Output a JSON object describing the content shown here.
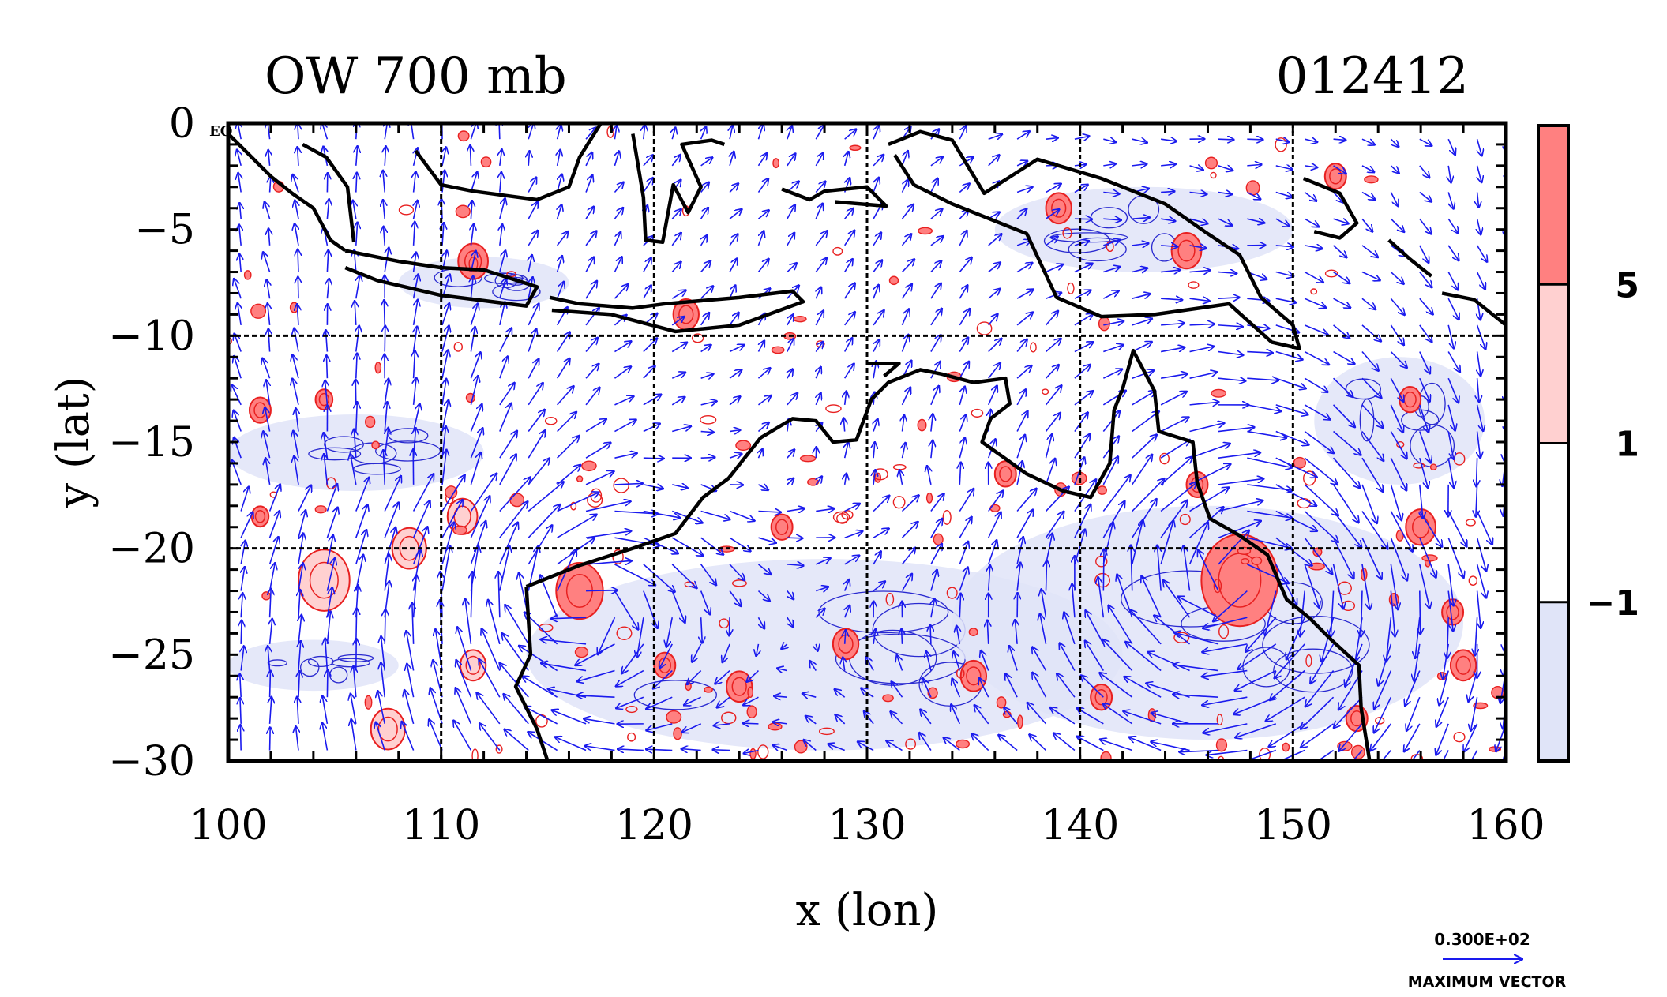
{
  "chart_data": {
    "type": "heatmap",
    "title_left": "OW 700 mb",
    "title_right": "012412",
    "xlabel": "x (lon)",
    "ylabel": "y (lat)",
    "xlim": [
      100,
      160
    ],
    "ylim": [
      -30,
      0
    ],
    "x_ticks": [
      100,
      110,
      120,
      130,
      140,
      150,
      160
    ],
    "y_ticks": [
      0,
      -5,
      -10,
      -15,
      -20,
      -25,
      -30
    ],
    "x_tick_labels": [
      "100",
      "110",
      "120",
      "130",
      "140",
      "150",
      "160"
    ],
    "y_tick_labels": [
      "0",
      "−5",
      "−10",
      "−15",
      "−20",
      "−25",
      "−30"
    ],
    "equator_label": "EQ",
    "grid_lon": [
      110,
      120,
      130,
      140,
      150
    ],
    "grid_lat": [
      -10,
      -20
    ],
    "colorbar": {
      "levels": [
        -1,
        1,
        5
      ],
      "level_labels": [
        "−1",
        "1",
        "5"
      ],
      "colors": [
        "#e0e4f8",
        "#ffffff",
        "#ffd0d0",
        "#ff8080"
      ]
    },
    "vector_legend": {
      "magnitude": "0.300E+02",
      "label": "MAXIMUM VECTOR"
    },
    "positive_features": [
      {
        "lon": 147.5,
        "lat": -21.5,
        "r": 1.8,
        "level": 5
      },
      {
        "lon": 116.5,
        "lat": -22.0,
        "r": 1.1,
        "level": 5
      },
      {
        "lon": 104.5,
        "lat": -21.5,
        "r": 1.2,
        "level": 1
      },
      {
        "lon": 108.5,
        "lat": -20.0,
        "r": 0.8,
        "level": 1
      },
      {
        "lon": 111.0,
        "lat": -18.5,
        "r": 0.7,
        "level": 1
      },
      {
        "lon": 107.5,
        "lat": -28.5,
        "r": 0.8,
        "level": 1
      },
      {
        "lon": 111.5,
        "lat": -25.5,
        "r": 0.6,
        "level": 1
      },
      {
        "lon": 156.0,
        "lat": -19.0,
        "r": 0.7,
        "level": 5
      },
      {
        "lon": 155.5,
        "lat": -13.0,
        "r": 0.5,
        "level": 5
      },
      {
        "lon": 111.5,
        "lat": -6.5,
        "r": 0.7,
        "level": 5
      },
      {
        "lon": 121.5,
        "lat": -9.0,
        "r": 0.6,
        "level": 5
      },
      {
        "lon": 152.0,
        "lat": -2.5,
        "r": 0.5,
        "level": 5
      },
      {
        "lon": 101.5,
        "lat": -13.5,
        "r": 0.5,
        "level": 5
      },
      {
        "lon": 104.5,
        "lat": -13.0,
        "r": 0.4,
        "level": 5
      },
      {
        "lon": 101.5,
        "lat": -18.5,
        "r": 0.4,
        "level": 5
      },
      {
        "lon": 139.0,
        "lat": -4.0,
        "r": 0.6,
        "level": 5
      },
      {
        "lon": 145.0,
        "lat": -6.0,
        "r": 0.7,
        "level": 5
      },
      {
        "lon": 124.0,
        "lat": -26.5,
        "r": 0.6,
        "level": 5
      },
      {
        "lon": 135.0,
        "lat": -26.0,
        "r": 0.6,
        "level": 5
      },
      {
        "lon": 129.0,
        "lat": -24.5,
        "r": 0.6,
        "level": 5
      },
      {
        "lon": 141.0,
        "lat": -27.0,
        "r": 0.5,
        "level": 5
      },
      {
        "lon": 158.0,
        "lat": -25.5,
        "r": 0.6,
        "level": 5
      },
      {
        "lon": 153.0,
        "lat": -28.0,
        "r": 0.5,
        "level": 5
      },
      {
        "lon": 136.5,
        "lat": -16.5,
        "r": 0.5,
        "level": 5
      },
      {
        "lon": 126.0,
        "lat": -19.0,
        "r": 0.5,
        "level": 5
      },
      {
        "lon": 120.5,
        "lat": -25.5,
        "r": 0.5,
        "level": 5
      },
      {
        "lon": 145.5,
        "lat": -17.0,
        "r": 0.5,
        "level": 5
      },
      {
        "lon": 157.5,
        "lat": -23.0,
        "r": 0.5,
        "level": 5
      }
    ],
    "negative_regions": [
      {
        "lon": 128.0,
        "lat": -25.0,
        "rx": 14.0,
        "ry": 4.5
      },
      {
        "lon": 146.0,
        "lat": -23.5,
        "rx": 12.0,
        "ry": 5.5
      },
      {
        "lon": 106.0,
        "lat": -15.5,
        "rx": 6.0,
        "ry": 1.8
      },
      {
        "lon": 104.0,
        "lat": -25.5,
        "rx": 4.0,
        "ry": 1.2
      },
      {
        "lon": 155.0,
        "lat": -14.0,
        "rx": 4.0,
        "ry": 3.0
      },
      {
        "lon": 143.0,
        "lat": -5.0,
        "rx": 7.0,
        "ry": 2.0
      },
      {
        "lon": 112.0,
        "lat": -7.5,
        "rx": 4.0,
        "ry": 1.2
      }
    ],
    "coastlines": [
      [
        [
          100.0,
          -0.5
        ],
        [
          101.0,
          -1.5
        ],
        [
          102.0,
          -2.5
        ],
        [
          103.0,
          -3.3
        ],
        [
          104.0,
          -4.0
        ],
        [
          104.8,
          -5.5
        ],
        [
          105.5,
          -6.0
        ]
      ],
      [
        [
          103.5,
          -1.0
        ],
        [
          104.6,
          -1.6
        ],
        [
          105.6,
          -3.0
        ],
        [
          105.9,
          -5.6
        ]
      ],
      [
        [
          105.5,
          -6.0
        ],
        [
          108.0,
          -6.5
        ],
        [
          110.0,
          -6.8
        ],
        [
          112.0,
          -6.9
        ],
        [
          114.5,
          -7.7
        ],
        [
          114.0,
          -8.6
        ],
        [
          110.0,
          -8.1
        ],
        [
          107.0,
          -7.4
        ],
        [
          105.5,
          -6.8
        ]
      ],
      [
        [
          115.1,
          -8.2
        ],
        [
          116.5,
          -8.5
        ],
        [
          119.0,
          -8.7
        ],
        [
          120.5,
          -8.5
        ],
        [
          124.0,
          -8.2
        ],
        [
          126.5,
          -7.9
        ],
        [
          127.0,
          -8.4
        ],
        [
          124.0,
          -9.5
        ],
        [
          121.0,
          -9.8
        ],
        [
          118.0,
          -9.0
        ],
        [
          115.2,
          -8.8
        ]
      ],
      [
        [
          108.8,
          -1.3
        ],
        [
          110.0,
          -2.9
        ],
        [
          111.5,
          -3.2
        ],
        [
          114.5,
          -3.6
        ],
        [
          116.0,
          -3.0
        ],
        [
          116.5,
          -1.6
        ],
        [
          117.5,
          0.0
        ]
      ],
      [
        [
          119.0,
          -0.5
        ],
        [
          119.5,
          -3.5
        ],
        [
          119.6,
          -5.5
        ],
        [
          120.4,
          -5.6
        ],
        [
          120.9,
          -2.9
        ],
        [
          121.6,
          -4.2
        ],
        [
          122.2,
          -3.0
        ],
        [
          121.3,
          -1.0
        ],
        [
          122.7,
          -0.8
        ],
        [
          123.3,
          -1.0
        ]
      ],
      [
        [
          126.0,
          -3.1
        ],
        [
          127.3,
          -3.6
        ],
        [
          128.0,
          -3.2
        ],
        [
          130.0,
          -3.0
        ],
        [
          130.9,
          -3.9
        ],
        [
          128.5,
          -3.7
        ]
      ],
      [
        [
          131.0,
          -1.0
        ],
        [
          132.5,
          -0.4
        ],
        [
          134.0,
          -0.8
        ],
        [
          135.5,
          -3.3
        ],
        [
          138.0,
          -1.7
        ],
        [
          141.0,
          -2.6
        ],
        [
          144.0,
          -3.8
        ],
        [
          146.0,
          -5.2
        ],
        [
          147.5,
          -6.2
        ],
        [
          148.5,
          -8.2
        ],
        [
          150.0,
          -9.5
        ],
        [
          150.3,
          -10.6
        ],
        [
          149.0,
          -10.3
        ],
        [
          147.0,
          -8.5
        ],
        [
          143.5,
          -9.0
        ],
        [
          141.0,
          -9.1
        ],
        [
          138.9,
          -8.2
        ],
        [
          137.5,
          -5.2
        ],
        [
          136.0,
          -4.6
        ],
        [
          134.0,
          -3.8
        ],
        [
          132.2,
          -2.9
        ],
        [
          131.3,
          -1.5
        ]
      ],
      [
        [
          150.5,
          -2.6
        ],
        [
          152.2,
          -3.3
        ],
        [
          153.0,
          -4.7
        ],
        [
          152.2,
          -5.4
        ],
        [
          151.0,
          -5.1
        ]
      ],
      [
        [
          154.5,
          -5.5
        ],
        [
          155.5,
          -6.4
        ],
        [
          156.5,
          -7.2
        ]
      ],
      [
        [
          157.0,
          -8.0
        ],
        [
          158.5,
          -8.3
        ],
        [
          160.0,
          -9.5
        ]
      ],
      [
        [
          114.0,
          -21.8
        ],
        [
          114.2,
          -25.0
        ],
        [
          113.5,
          -26.5
        ],
        [
          114.5,
          -28.5
        ],
        [
          115.0,
          -30.0
        ]
      ],
      [
        [
          114.0,
          -21.8
        ],
        [
          116.5,
          -20.8
        ],
        [
          119.0,
          -20.0
        ],
        [
          121.0,
          -19.3
        ],
        [
          122.3,
          -17.6
        ],
        [
          123.5,
          -16.7
        ],
        [
          125.0,
          -14.8
        ],
        [
          126.5,
          -13.9
        ],
        [
          127.6,
          -14.0
        ],
        [
          128.4,
          -15.0
        ],
        [
          129.5,
          -14.9
        ],
        [
          130.2,
          -13.0
        ],
        [
          131.0,
          -12.2
        ],
        [
          132.5,
          -11.6
        ],
        [
          133.5,
          -11.8
        ],
        [
          135.0,
          -12.2
        ],
        [
          136.5,
          -12.0
        ],
        [
          136.7,
          -13.2
        ],
        [
          135.8,
          -13.9
        ],
        [
          135.4,
          -15.0
        ],
        [
          137.5,
          -16.5
        ],
        [
          139.2,
          -17.3
        ],
        [
          140.5,
          -17.6
        ],
        [
          141.4,
          -16.0
        ],
        [
          141.6,
          -13.5
        ],
        [
          142.0,
          -12.5
        ],
        [
          142.5,
          -10.7
        ],
        [
          143.5,
          -12.6
        ],
        [
          143.7,
          -14.5
        ],
        [
          145.3,
          -15.0
        ],
        [
          145.5,
          -16.9
        ],
        [
          146.1,
          -18.6
        ],
        [
          147.5,
          -19.4
        ],
        [
          148.8,
          -20.3
        ],
        [
          149.7,
          -22.4
        ],
        [
          150.8,
          -23.3
        ],
        [
          151.8,
          -24.3
        ],
        [
          153.1,
          -25.5
        ],
        [
          153.2,
          -27.5
        ],
        [
          153.6,
          -30.0
        ]
      ],
      [
        [
          130.0,
          -11.3
        ],
        [
          131.5,
          -11.3
        ],
        [
          130.8,
          -11.9
        ]
      ]
    ]
  }
}
